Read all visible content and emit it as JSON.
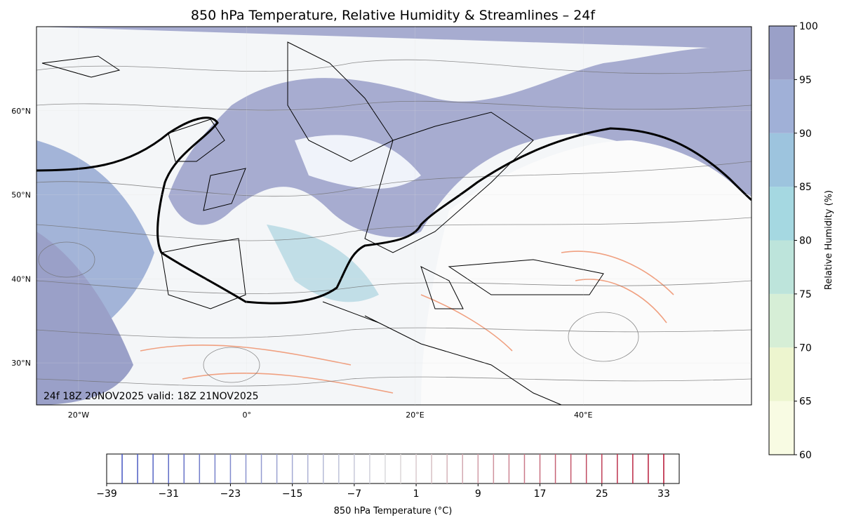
{
  "title": "850 hPa Temperature, Relative Humidity & Streamlines – 24f",
  "map": {
    "lonlim": [
      -25,
      60
    ],
    "latlim": [
      25,
      70
    ],
    "lonticks": [
      {
        "value": -20,
        "label": "20°W"
      },
      {
        "value": 0,
        "label": "0°"
      },
      {
        "value": 20,
        "label": "20°E"
      },
      {
        "value": 40,
        "label": "40°E"
      }
    ],
    "latticks": [
      {
        "value": 30,
        "label": "30°N"
      },
      {
        "value": 40,
        "label": "40°N"
      },
      {
        "value": 50,
        "label": "50°N"
      },
      {
        "value": 60,
        "label": "60°N"
      }
    ],
    "annotation": "24f 18Z 20NOV2025 valid: 18Z 21NOV2025"
  },
  "rh_colorbar": {
    "label": "Relative Humidity (%)",
    "ticks": [
      60,
      65,
      70,
      75,
      80,
      85,
      90,
      95,
      100
    ],
    "colors": [
      "#f8fbe3",
      "#edf5cf",
      "#d6eed6",
      "#bde4db",
      "#a5d8e1",
      "#9dc4de",
      "#a0b0d7",
      "#9aa0c8"
    ]
  },
  "temp_colorbar": {
    "label": "850 hPa Temperature (°C)",
    "lim": [
      -39,
      35
    ],
    "ticks": [
      {
        "value": -39,
        "label": "−39"
      },
      {
        "value": -31,
        "label": "−31"
      },
      {
        "value": -23,
        "label": "−23"
      },
      {
        "value": -15,
        "label": "−15"
      },
      {
        "value": -7,
        "label": "−7"
      },
      1,
      9,
      17,
      25,
      33
    ],
    "levels": [
      -37,
      -35,
      -33,
      -31,
      -29,
      -27,
      -25,
      -23,
      -21,
      -19,
      -17,
      -15,
      -13,
      -11,
      -9,
      -7,
      -5,
      -3,
      -1,
      1,
      3,
      5,
      7,
      9,
      11,
      13,
      15,
      17,
      19,
      21,
      23,
      25,
      27,
      29,
      31,
      33
    ],
    "cmap": [
      "#3b4cc0",
      "#dddddd",
      "#b40426"
    ]
  }
}
